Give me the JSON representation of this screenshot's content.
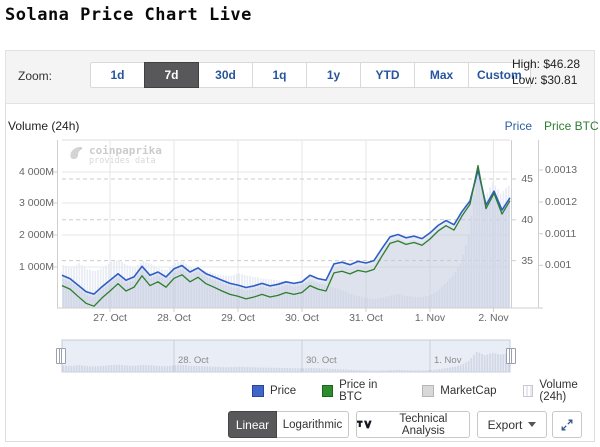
{
  "page": {
    "title": "Solana Price Chart Live"
  },
  "toolbar": {
    "zoom_label": "Zoom:",
    "zoom_buttons": [
      {
        "label": "1d",
        "active": false
      },
      {
        "label": "7d",
        "active": true
      },
      {
        "label": "30d",
        "active": false
      },
      {
        "label": "1q",
        "active": false
      },
      {
        "label": "1y",
        "active": false
      },
      {
        "label": "YTD",
        "active": false
      },
      {
        "label": "Max",
        "active": false
      },
      {
        "label": "Custom",
        "active": false
      }
    ],
    "high_label": "High: $46.28",
    "low_label": "Low: $30.81"
  },
  "watermark": {
    "line1": "coinpaprika",
    "line2": "provides data"
  },
  "chart_data": {
    "type": "line",
    "title": "Solana Price Chart Live",
    "high": 46.28,
    "low": 30.81,
    "x_tick_labels": [
      "27. Oct",
      "28. Oct",
      "29. Oct",
      "30. Oct",
      "31. Oct",
      "1. Nov",
      "2. Nov"
    ],
    "navigator_labels": [
      "28. Oct",
      "30. Oct",
      "1. Nov"
    ],
    "axes": {
      "volume": {
        "title": "Volume (24h)",
        "side": "left",
        "tick_labels": [
          "4 000M",
          "3 000M",
          "2 000M",
          "1 000M"
        ],
        "tick_values": [
          4000,
          3000,
          2000,
          1000
        ],
        "unit": "M"
      },
      "price": {
        "title": "Price",
        "side": "right",
        "tick_labels": [
          "45",
          "40",
          "35"
        ],
        "tick_values": [
          45,
          40,
          35
        ]
      },
      "price_btc": {
        "title": "Price BTC",
        "side": "far-right",
        "tick_labels": [
          "0.0013",
          "0.0012",
          "0.0011",
          "0.001"
        ],
        "tick_values": [
          0.0013,
          0.0012,
          0.0011,
          0.001
        ]
      }
    },
    "series": [
      {
        "name": "Price",
        "type": "area-line",
        "color": "#2f5ec4",
        "axis": "price",
        "values": [
          33.2,
          32.8,
          32.0,
          31.2,
          30.9,
          31.8,
          32.6,
          33.4,
          32.6,
          33.0,
          34.3,
          33.2,
          33.6,
          33.0,
          34.0,
          34.4,
          33.6,
          34.1,
          33.4,
          33.0,
          32.6,
          32.2,
          32.0,
          31.7,
          31.9,
          32.2,
          31.9,
          32.1,
          32.4,
          32.2,
          32.4,
          33.2,
          32.8,
          32.6,
          34.6,
          34.8,
          34.5,
          34.9,
          34.7,
          35.0,
          36.5,
          37.9,
          38.2,
          37.8,
          38.0,
          37.7,
          38.4,
          39.3,
          39.9,
          39.4,
          41.0,
          42.3,
          46.1,
          41.8,
          43.5,
          41.2,
          42.7
        ]
      },
      {
        "name": "Price in BTC",
        "type": "line",
        "color": "#2e7d2e",
        "axis": "price_btc",
        "values": [
          0.000936,
          0.000925,
          0.000902,
          0.00088,
          0.000871,
          0.000897,
          0.000919,
          0.000942,
          0.000919,
          0.000931,
          0.000967,
          0.000936,
          0.000948,
          0.000931,
          0.000959,
          0.00097,
          0.000948,
          0.000962,
          0.000942,
          0.000931,
          0.000919,
          0.000908,
          0.000902,
          0.000894,
          0.0009,
          0.000908,
          0.0009,
          0.000905,
          0.000914,
          0.000908,
          0.000914,
          0.000936,
          0.000925,
          0.000919,
          0.000976,
          0.000981,
          0.000973,
          0.000984,
          0.000979,
          0.000987,
          0.001029,
          0.001069,
          0.001077,
          0.001066,
          0.001072,
          0.001063,
          0.001083,
          0.001108,
          0.001125,
          0.001111,
          0.001156,
          0.001193,
          0.001315,
          0.001179,
          0.001227,
          0.001162,
          0.001204
        ]
      },
      {
        "name": "MarketCap",
        "type": "area",
        "color": "#dcdcdc"
      },
      {
        "name": "Volume (24h)",
        "type": "column",
        "color": "#e9ecf5",
        "unit": "M",
        "axis": "volume",
        "values": [
          1050,
          980,
          1100,
          950,
          900,
          1000,
          1120,
          1180,
          1050,
          1000,
          1150,
          1080,
          980,
          920,
          1100,
          1150,
          1000,
          950,
          900,
          850,
          800,
          780,
          850,
          800,
          760,
          720,
          700,
          680,
          650,
          620,
          600,
          650,
          600,
          550,
          500,
          450,
          350,
          300,
          250,
          220,
          250,
          300,
          350,
          300,
          280,
          260,
          300,
          400,
          600,
          800,
          1100,
          1800,
          3300,
          2700,
          3100,
          2800,
          3000
        ]
      }
    ]
  },
  "legend": {
    "items": [
      {
        "label": "Price",
        "swatch": "solid",
        "color": "#4166c9",
        "border": "#2b4596"
      },
      {
        "label": "Price in BTC",
        "swatch": "solid",
        "color": "#2e8b2e",
        "border": "#1d651d"
      },
      {
        "label": "MarketCap",
        "swatch": "solid",
        "color": "#d8d8d8",
        "border": "#b5b5b5"
      },
      {
        "label": "Volume (24h)",
        "swatch": "striped",
        "color": "#e6e9f1",
        "border": "#c9c9c9"
      }
    ]
  },
  "controls": {
    "scale_buttons": [
      {
        "label": "Linear",
        "active": true
      },
      {
        "label": "Logarithmic",
        "active": false
      }
    ],
    "technical_analysis_label": "Technical Analysis",
    "export_label": "Export"
  }
}
